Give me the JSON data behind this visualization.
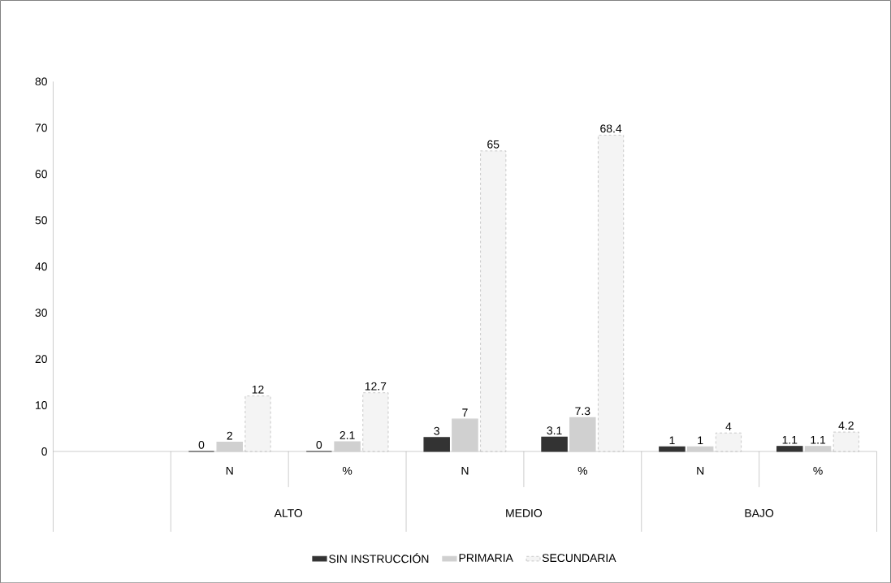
{
  "chart_data": {
    "type": "bar",
    "categories": [
      null,
      "N",
      "%",
      "N",
      "%",
      "N",
      "%"
    ],
    "series": [
      {
        "name": "SIN INSTRUCCIÓN",
        "color": "#333333",
        "values": [
          null,
          0,
          0,
          3,
          3.1,
          1,
          1.1
        ]
      },
      {
        "name": "PRIMARIA",
        "color": "#d0d0d0",
        "values": [
          null,
          2,
          2.1,
          7,
          7.3,
          1,
          1.1
        ]
      },
      {
        "name": "SECUNDARIA",
        "color": "#f4f4f4",
        "values": [
          null,
          12,
          12.7,
          65,
          68.4,
          4,
          4.2
        ]
      }
    ],
    "annotations": [
      "ALTO",
      "MEDIO",
      "BAJO"
    ],
    "ylim": [
      0,
      80
    ],
    "yticks": [
      0,
      10,
      20,
      30,
      40,
      50,
      60,
      70,
      80
    ],
    "data_labels": true,
    "grid": false,
    "legend": "bottom"
  }
}
